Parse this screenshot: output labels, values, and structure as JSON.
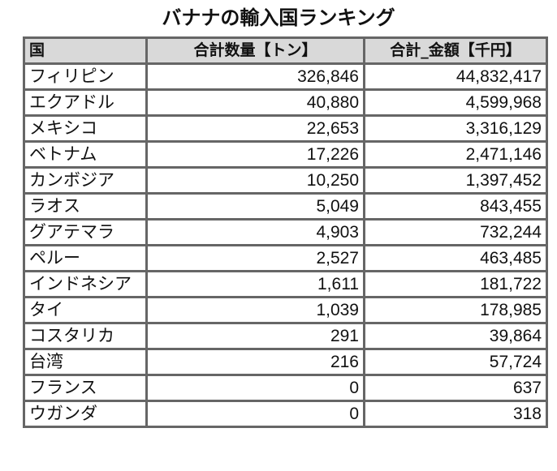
{
  "title": "バナナの輸入国ランキング",
  "table": {
    "headers": {
      "country": "国",
      "quantity": "合計数量【トン】",
      "amount": "合計_金額【千円】"
    },
    "rows": [
      {
        "country": "フィリピン",
        "quantity": "326,846",
        "amount": "44,832,417"
      },
      {
        "country": "エクアドル",
        "quantity": "40,880",
        "amount": "4,599,968"
      },
      {
        "country": "メキシコ",
        "quantity": "22,653",
        "amount": "3,316,129"
      },
      {
        "country": "ベトナム",
        "quantity": "17,226",
        "amount": "2,471,146"
      },
      {
        "country": "カンボジア",
        "quantity": "10,250",
        "amount": "1,397,452"
      },
      {
        "country": "ラオス",
        "quantity": "5,049",
        "amount": "843,455"
      },
      {
        "country": "グアテマラ",
        "quantity": "4,903",
        "amount": "732,244"
      },
      {
        "country": "ペルー",
        "quantity": "2,527",
        "amount": "463,485"
      },
      {
        "country": "インドネシア",
        "quantity": "1,611",
        "amount": "181,722"
      },
      {
        "country": "タイ",
        "quantity": "1,039",
        "amount": "178,985"
      },
      {
        "country": "コスタリカ",
        "quantity": "291",
        "amount": "39,864"
      },
      {
        "country": "台湾",
        "quantity": "216",
        "amount": "57,724"
      },
      {
        "country": "フランス",
        "quantity": "0",
        "amount": "637"
      },
      {
        "country": "ウガンダ",
        "quantity": "0",
        "amount": "318"
      }
    ]
  },
  "colors": {
    "header_bg": "#d9d9d9",
    "border": "#666666",
    "text": "#111111"
  }
}
